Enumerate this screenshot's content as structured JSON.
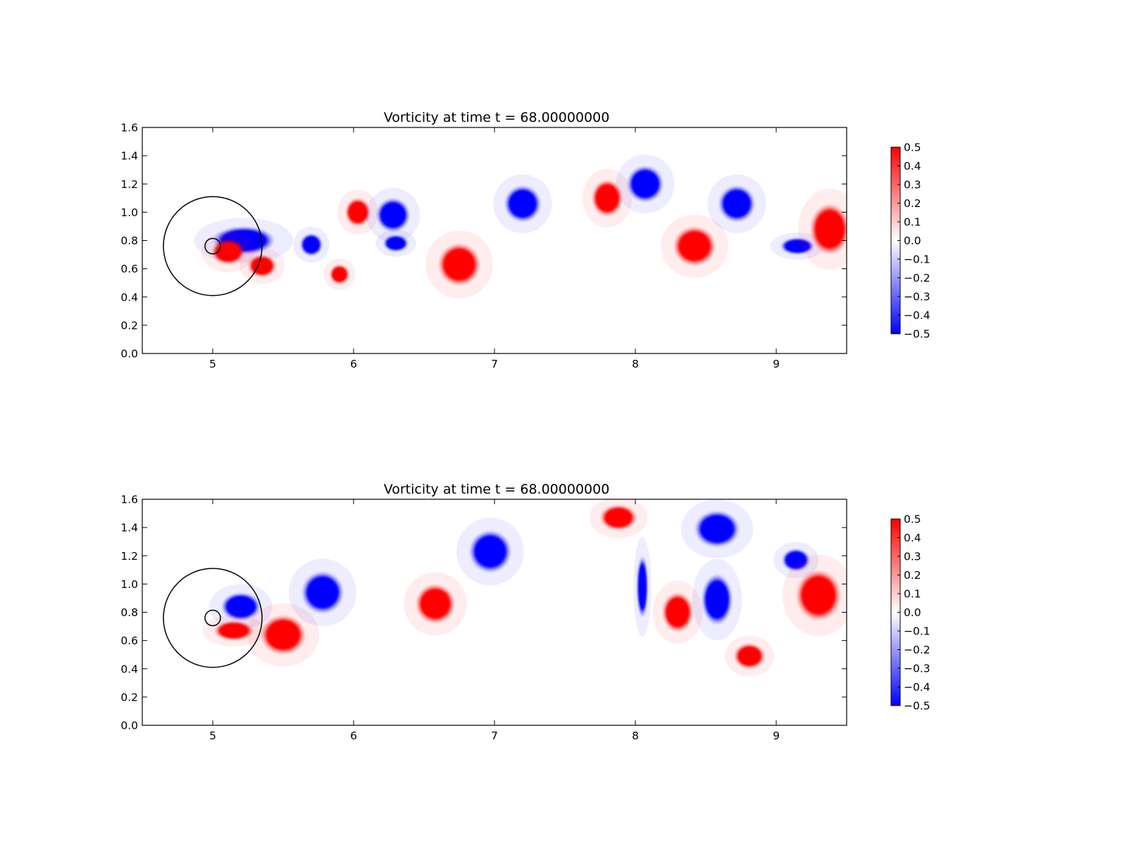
{
  "chart_data": [
    {
      "type": "heatmap",
      "title": "Vorticity at time t =    68.00000000",
      "xlim": [
        4.5,
        9.5
      ],
      "ylim": [
        0.0,
        1.6
      ],
      "xticks": [
        "5",
        "6",
        "7",
        "8",
        "9"
      ],
      "yticks": [
        "0.0",
        "0.2",
        "0.4",
        "0.6",
        "0.8",
        "1.0",
        "1.2",
        "1.4",
        "1.6"
      ],
      "colorbar": {
        "min": -0.5,
        "max": 0.5,
        "colormap": "bwr",
        "ticks": [
          "0.5",
          "0.4",
          "0.3",
          "0.2",
          "0.1",
          "0.0",
          "−0.1",
          "−0.2",
          "−0.3",
          "−0.4",
          "−0.5"
        ]
      },
      "markers": [
        {
          "shape": "circle",
          "cx": 5.0,
          "cy": 0.76,
          "r": 0.35
        },
        {
          "shape": "circle",
          "cx": 5.0,
          "cy": 0.76,
          "r": 0.055
        }
      ],
      "vortices": [
        {
          "x": 5.22,
          "y": 0.8,
          "w": 0.22,
          "h": 0.1,
          "v": -0.5
        },
        {
          "x": 5.11,
          "y": 0.72,
          "w": 0.12,
          "h": 0.09,
          "v": 0.5
        },
        {
          "x": 5.35,
          "y": 0.62,
          "w": 0.1,
          "h": 0.08,
          "v": 0.5
        },
        {
          "x": 5.7,
          "y": 0.77,
          "w": 0.08,
          "h": 0.08,
          "v": -0.5
        },
        {
          "x": 5.9,
          "y": 0.56,
          "w": 0.07,
          "h": 0.07,
          "v": 0.5
        },
        {
          "x": 6.03,
          "y": 1.0,
          "w": 0.09,
          "h": 0.1,
          "v": 0.5
        },
        {
          "x": 6.28,
          "y": 0.98,
          "w": 0.12,
          "h": 0.12,
          "v": -0.5
        },
        {
          "x": 6.3,
          "y": 0.78,
          "w": 0.09,
          "h": 0.06,
          "v": -0.5
        },
        {
          "x": 6.75,
          "y": 0.63,
          "w": 0.15,
          "h": 0.15,
          "v": 0.5
        },
        {
          "x": 7.2,
          "y": 1.06,
          "w": 0.13,
          "h": 0.13,
          "v": -0.5
        },
        {
          "x": 7.8,
          "y": 1.1,
          "w": 0.11,
          "h": 0.13,
          "v": 0.5
        },
        {
          "x": 8.07,
          "y": 1.2,
          "w": 0.13,
          "h": 0.13,
          "v": -0.5
        },
        {
          "x": 8.42,
          "y": 0.76,
          "w": 0.15,
          "h": 0.14,
          "v": 0.5
        },
        {
          "x": 8.72,
          "y": 1.06,
          "w": 0.13,
          "h": 0.13,
          "v": -0.5
        },
        {
          "x": 9.15,
          "y": 0.76,
          "w": 0.12,
          "h": 0.06,
          "v": -0.5
        },
        {
          "x": 9.38,
          "y": 0.88,
          "w": 0.14,
          "h": 0.18,
          "v": 0.5
        }
      ]
    },
    {
      "type": "heatmap",
      "title": "Vorticity at time t =    68.00000000",
      "xlim": [
        4.5,
        9.5
      ],
      "ylim": [
        0.0,
        1.6
      ],
      "xticks": [
        "5",
        "6",
        "7",
        "8",
        "9"
      ],
      "yticks": [
        "0.0",
        "0.2",
        "0.4",
        "0.6",
        "0.8",
        "1.0",
        "1.2",
        "1.4",
        "1.6"
      ],
      "colorbar": {
        "min": -0.5,
        "max": 0.5,
        "colormap": "bwr",
        "ticks": [
          "0.5",
          "0.4",
          "0.3",
          "0.2",
          "0.1",
          "0.0",
          "−0.1",
          "−0.2",
          "−0.3",
          "−0.4",
          "−0.5"
        ]
      },
      "markers": [
        {
          "shape": "circle",
          "cx": 5.0,
          "cy": 0.76,
          "r": 0.35
        },
        {
          "shape": "circle",
          "cx": 5.0,
          "cy": 0.76,
          "r": 0.055
        }
      ],
      "vortices": [
        {
          "x": 5.2,
          "y": 0.84,
          "w": 0.14,
          "h": 0.1,
          "v": -0.5
        },
        {
          "x": 5.15,
          "y": 0.67,
          "w": 0.14,
          "h": 0.07,
          "v": 0.5
        },
        {
          "x": 5.5,
          "y": 0.64,
          "w": 0.16,
          "h": 0.14,
          "v": 0.5
        },
        {
          "x": 5.78,
          "y": 0.94,
          "w": 0.15,
          "h": 0.15,
          "v": -0.5
        },
        {
          "x": 6.58,
          "y": 0.86,
          "w": 0.14,
          "h": 0.14,
          "v": 0.5
        },
        {
          "x": 6.97,
          "y": 1.23,
          "w": 0.15,
          "h": 0.15,
          "v": -0.5
        },
        {
          "x": 7.88,
          "y": 1.47,
          "w": 0.13,
          "h": 0.09,
          "v": 0.5
        },
        {
          "x": 8.05,
          "y": 0.98,
          "w": 0.04,
          "h": 0.22,
          "v": -0.5
        },
        {
          "x": 8.3,
          "y": 0.8,
          "w": 0.11,
          "h": 0.14,
          "v": 0.5
        },
        {
          "x": 8.58,
          "y": 0.89,
          "w": 0.11,
          "h": 0.18,
          "v": -0.5
        },
        {
          "x": 8.58,
          "y": 1.39,
          "w": 0.16,
          "h": 0.13,
          "v": -0.5
        },
        {
          "x": 8.81,
          "y": 0.49,
          "w": 0.11,
          "h": 0.09,
          "v": 0.5
        },
        {
          "x": 9.14,
          "y": 1.17,
          "w": 0.1,
          "h": 0.08,
          "v": -0.5
        },
        {
          "x": 9.3,
          "y": 0.92,
          "w": 0.16,
          "h": 0.18,
          "v": 0.5
        }
      ]
    }
  ]
}
